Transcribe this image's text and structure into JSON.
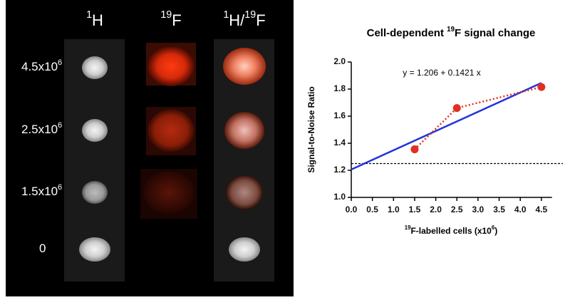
{
  "panel": {
    "column_headers": [
      [
        {
          "text": "1",
          "sup": true
        },
        {
          "text": "H"
        }
      ],
      [
        {
          "text": "19",
          "sup": true
        },
        {
          "text": "F"
        }
      ],
      [
        {
          "text": "1",
          "sup": true
        },
        {
          "text": "H/"
        },
        {
          "text": "19",
          "sup": true
        },
        {
          "text": "F"
        }
      ]
    ],
    "row_labels": [
      [
        {
          "text": "4.5x10"
        },
        {
          "text": "6",
          "sup": true
        }
      ],
      [
        {
          "text": "2.5x10"
        },
        {
          "text": "6",
          "sup": true
        }
      ],
      [
        {
          "text": "1.5x10"
        },
        {
          "text": "6",
          "sup": true
        }
      ],
      [
        {
          "text": "0"
        }
      ]
    ]
  },
  "chart_data": {
    "type": "line",
    "title": [
      {
        "text": "Cell-dependent "
      },
      {
        "text": "19",
        "sup": true
      },
      {
        "text": "F signal change"
      }
    ],
    "y_label": "Signal-to-Noise Ratio",
    "x_label": [
      {
        "text": "19",
        "sup": true
      },
      {
        "text": "F-labelled cells (x10"
      },
      {
        "text": "6",
        "sup": true
      },
      {
        "text": ")"
      }
    ],
    "annotation": "y = 1.206 + 0.1421 x",
    "x": [
      1.5,
      2.5,
      4.5
    ],
    "series": [
      {
        "color": "#e03020",
        "values": [
          1.355,
          1.66,
          1.815
        ]
      }
    ],
    "fit": {
      "intercept": 1.206,
      "slope": 0.1421,
      "x_range": [
        0,
        4.5
      ],
      "color": "#2233dd"
    },
    "reference_line": 1.25,
    "xlim": [
      0,
      4.75
    ],
    "ylim": [
      1.0,
      2.0
    ],
    "xticks": [
      {
        "value": 0,
        "label": "0.0"
      },
      0.5,
      {
        "value": 1,
        "label": "1.0"
      },
      1.5,
      {
        "value": 2,
        "label": "2.0"
      },
      2.5,
      {
        "value": 3,
        "label": "3.0"
      },
      3.5,
      {
        "value": 4,
        "label": "4.0"
      },
      4.5
    ],
    "yticks": [
      {
        "value": 1,
        "label": "1.0"
      },
      1.2,
      1.4,
      1.6,
      1.8,
      {
        "value": 2,
        "label": "2.0"
      }
    ]
  }
}
